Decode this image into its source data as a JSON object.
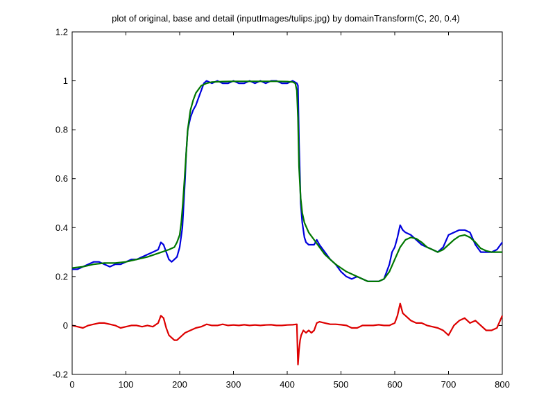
{
  "chart_data": {
    "type": "line",
    "title": "plot of original, base and detail (inputImages/tulips.jpg) by domainTransform(C, 20, 0.4)",
    "xlabel": "",
    "ylabel": "",
    "xlim": [
      0,
      800
    ],
    "ylim": [
      -0.2,
      1.2
    ],
    "xticks": [
      0,
      100,
      200,
      300,
      400,
      500,
      600,
      700,
      800
    ],
    "yticks": [
      -0.2,
      0,
      0.2,
      0.4,
      0.6,
      0.8,
      1,
      1.2
    ],
    "xtick_labels": [
      "0",
      "100",
      "200",
      "300",
      "400",
      "500",
      "600",
      "700",
      "800"
    ],
    "ytick_labels": [
      "-0.2",
      "0",
      "0.2",
      "0.4",
      "0.6",
      "0.8",
      "1",
      "1.2"
    ],
    "grid": false,
    "series": [
      {
        "color": "#0000dd",
        "x": [
          0,
          10,
          20,
          30,
          40,
          50,
          60,
          70,
          80,
          90,
          100,
          110,
          120,
          130,
          140,
          150,
          160,
          165,
          170,
          175,
          180,
          185,
          190,
          195,
          200,
          205,
          210,
          212,
          215,
          220,
          225,
          230,
          235,
          240,
          245,
          250,
          260,
          270,
          280,
          290,
          300,
          310,
          320,
          330,
          340,
          350,
          360,
          370,
          380,
          390,
          400,
          410,
          418,
          420,
          422,
          425,
          428,
          432,
          435,
          440,
          450,
          455,
          460,
          470,
          480,
          490,
          500,
          510,
          520,
          530,
          540,
          550,
          560,
          570,
          580,
          590,
          595,
          600,
          605,
          610,
          615,
          620,
          630,
          640,
          650,
          660,
          670,
          680,
          690,
          700,
          710,
          720,
          730,
          740,
          750,
          760,
          770,
          780,
          790,
          800
        ],
        "y": [
          0.23,
          0.23,
          0.24,
          0.25,
          0.26,
          0.26,
          0.25,
          0.24,
          0.25,
          0.25,
          0.26,
          0.27,
          0.27,
          0.28,
          0.29,
          0.3,
          0.31,
          0.34,
          0.33,
          0.3,
          0.27,
          0.26,
          0.27,
          0.28,
          0.32,
          0.4,
          0.6,
          0.7,
          0.8,
          0.85,
          0.88,
          0.9,
          0.93,
          0.96,
          0.99,
          1.0,
          0.99,
          1.0,
          0.99,
          0.99,
          1.0,
          0.99,
          0.99,
          1.0,
          0.99,
          1.0,
          0.99,
          1.0,
          1.0,
          0.99,
          0.99,
          1.0,
          0.99,
          0.98,
          0.75,
          0.5,
          0.42,
          0.36,
          0.34,
          0.33,
          0.33,
          0.35,
          0.33,
          0.3,
          0.27,
          0.25,
          0.22,
          0.2,
          0.19,
          0.2,
          0.19,
          0.18,
          0.18,
          0.18,
          0.19,
          0.25,
          0.3,
          0.32,
          0.36,
          0.41,
          0.39,
          0.38,
          0.37,
          0.35,
          0.33,
          0.32,
          0.31,
          0.3,
          0.32,
          0.37,
          0.38,
          0.39,
          0.39,
          0.38,
          0.33,
          0.3,
          0.3,
          0.3,
          0.31,
          0.34
        ]
      },
      {
        "color": "#007700",
        "x": [
          0,
          20,
          40,
          60,
          80,
          100,
          120,
          140,
          160,
          180,
          190,
          195,
          200,
          203,
          206,
          209,
          212,
          215,
          220,
          225,
          230,
          240,
          250,
          260,
          280,
          300,
          320,
          340,
          360,
          380,
          400,
          410,
          415,
          418,
          420,
          422,
          425,
          428,
          432,
          440,
          450,
          460,
          470,
          480,
          490,
          500,
          510,
          520,
          530,
          540,
          550,
          560,
          570,
          580,
          590,
          600,
          610,
          620,
          630,
          640,
          650,
          660,
          670,
          680,
          690,
          700,
          710,
          720,
          730,
          740,
          750,
          760,
          770,
          780,
          790,
          800
        ],
        "y": [
          0.235,
          0.24,
          0.25,
          0.255,
          0.255,
          0.26,
          0.27,
          0.28,
          0.295,
          0.31,
          0.32,
          0.34,
          0.37,
          0.42,
          0.5,
          0.6,
          0.7,
          0.8,
          0.88,
          0.92,
          0.95,
          0.98,
          0.99,
          0.995,
          0.997,
          0.998,
          0.998,
          0.998,
          0.998,
          0.998,
          0.997,
          0.995,
          0.99,
          0.96,
          0.85,
          0.65,
          0.52,
          0.46,
          0.42,
          0.38,
          0.35,
          0.32,
          0.29,
          0.27,
          0.25,
          0.235,
          0.22,
          0.21,
          0.2,
          0.19,
          0.18,
          0.18,
          0.18,
          0.19,
          0.22,
          0.27,
          0.32,
          0.35,
          0.36,
          0.355,
          0.34,
          0.32,
          0.31,
          0.3,
          0.31,
          0.33,
          0.35,
          0.365,
          0.37,
          0.36,
          0.34,
          0.315,
          0.305,
          0.3,
          0.3,
          0.3
        ]
      },
      {
        "color": "#dd0000",
        "x": [
          0,
          10,
          20,
          30,
          40,
          50,
          60,
          70,
          80,
          90,
          100,
          110,
          120,
          130,
          140,
          150,
          160,
          165,
          170,
          175,
          180,
          185,
          190,
          195,
          200,
          205,
          210,
          220,
          230,
          240,
          250,
          260,
          270,
          280,
          290,
          300,
          310,
          320,
          330,
          340,
          350,
          360,
          370,
          380,
          390,
          400,
          410,
          418,
          420,
          422,
          424,
          426,
          430,
          435,
          440,
          445,
          450,
          455,
          460,
          470,
          480,
          490,
          500,
          510,
          520,
          530,
          540,
          550,
          560,
          570,
          580,
          590,
          600,
          605,
          610,
          615,
          620,
          630,
          640,
          650,
          660,
          670,
          680,
          690,
          695,
          700,
          705,
          710,
          720,
          730,
          740,
          750,
          760,
          770,
          780,
          790,
          800
        ],
        "y": [
          0.0,
          -0.005,
          -0.01,
          0.0,
          0.005,
          0.01,
          0.01,
          0.005,
          0.0,
          -0.01,
          -0.005,
          0.0,
          0.0,
          -0.005,
          0.0,
          -0.005,
          0.01,
          0.04,
          0.03,
          -0.01,
          -0.04,
          -0.05,
          -0.06,
          -0.06,
          -0.05,
          -0.04,
          -0.03,
          -0.02,
          -0.01,
          -0.005,
          0.005,
          0.0,
          0.0,
          0.005,
          0.0,
          0.002,
          0.0,
          0.003,
          0.0,
          0.002,
          0.0,
          0.002,
          0.003,
          0.0,
          0.0,
          0.002,
          0.003,
          0.005,
          -0.16,
          -0.1,
          -0.06,
          -0.04,
          -0.02,
          -0.03,
          -0.02,
          -0.03,
          -0.02,
          0.01,
          0.015,
          0.01,
          0.005,
          0.005,
          0.003,
          0.0,
          -0.01,
          -0.01,
          0.0,
          0.0,
          0.0,
          0.003,
          0.0,
          0.0,
          0.01,
          0.04,
          0.09,
          0.05,
          0.04,
          0.02,
          0.01,
          0.01,
          0.0,
          -0.005,
          -0.01,
          -0.02,
          -0.03,
          -0.04,
          -0.02,
          0.0,
          0.02,
          0.03,
          0.01,
          0.02,
          0.0,
          -0.02,
          -0.02,
          -0.01,
          0.04
        ]
      }
    ]
  }
}
